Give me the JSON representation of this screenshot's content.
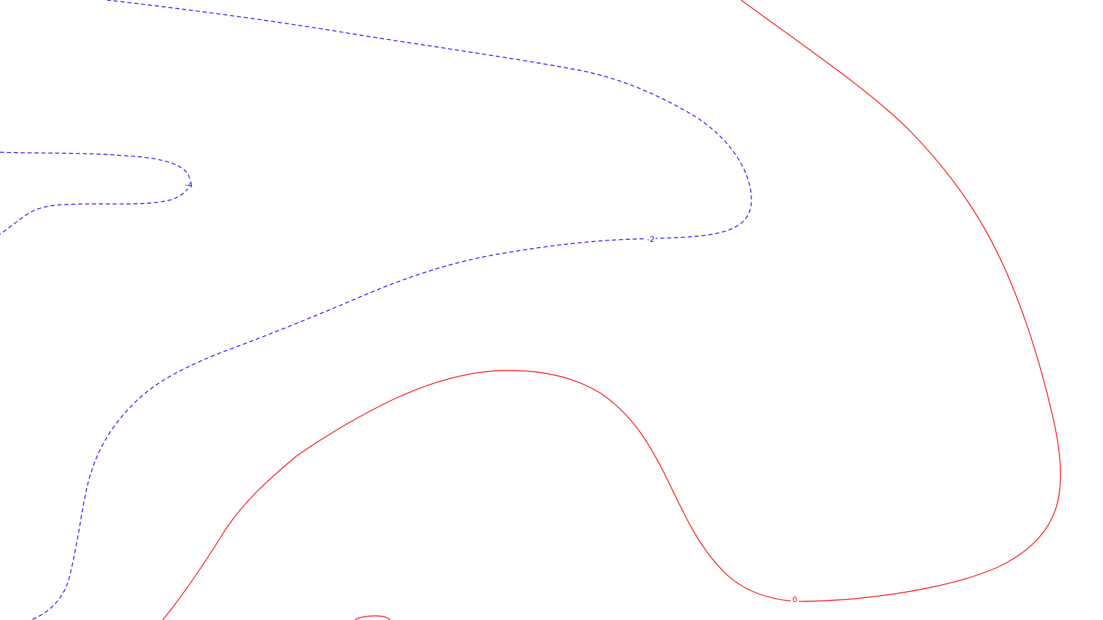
{
  "map": {
    "contours": [
      {
        "id": "neg4",
        "level": -4,
        "label": "-4",
        "color": "#0000ff",
        "style": "dashed"
      },
      {
        "id": "neg2",
        "level": -2,
        "label": "-2",
        "color": "#0000ff",
        "style": "dashed"
      },
      {
        "id": "zero-outer",
        "level": 0,
        "label": "0",
        "color": "#ff0000",
        "style": "solid"
      },
      {
        "id": "zero-inner",
        "level": 0,
        "label": "",
        "color": "#ff0000",
        "style": "solid"
      }
    ]
  }
}
